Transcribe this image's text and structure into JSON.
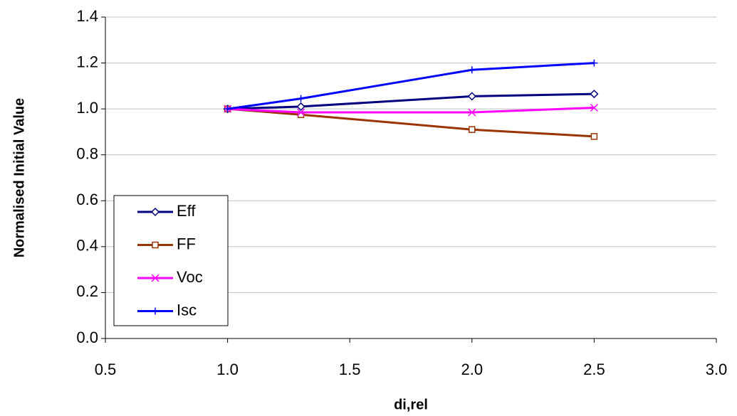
{
  "chart_data": {
    "type": "line",
    "x_label": "di,rel",
    "y_label": "Normalised Initial Value",
    "x": [
      1.0,
      1.3,
      2.0,
      2.5
    ],
    "series": [
      {
        "name": "Eff",
        "color": "#000080",
        "marker": "diamond",
        "values": [
          1.0,
          1.01,
          1.055,
          1.065
        ]
      },
      {
        "name": "FF",
        "color": "#993300",
        "marker": "square",
        "values": [
          1.0,
          0.975,
          0.91,
          0.88
        ]
      },
      {
        "name": "Voc",
        "color": "#ff00ff",
        "marker": "x",
        "values": [
          1.0,
          0.985,
          0.985,
          1.005
        ]
      },
      {
        "name": "Isc",
        "color": "#0000ff",
        "marker": "plus",
        "values": [
          1.0,
          1.045,
          1.17,
          1.2
        ]
      }
    ],
    "xlim": [
      0.5,
      3.0
    ],
    "xticks": [
      {
        "value": 0.5,
        "label": "0.5"
      },
      {
        "value": 1.0,
        "label": "1.0"
      },
      {
        "value": 1.5,
        "label": "1.5"
      },
      {
        "value": 2.0,
        "label": "2.0"
      },
      {
        "value": 2.5,
        "label": "2.5"
      },
      {
        "value": 3.0,
        "label": "3.0"
      }
    ],
    "ylim": [
      0,
      1.4
    ],
    "yticks": [
      {
        "value": 0,
        "label": "0.0"
      },
      {
        "value": 0.2,
        "label": "0.2"
      },
      {
        "value": 0.4,
        "label": "0.4"
      },
      {
        "value": 0.6,
        "label": "0.6"
      },
      {
        "value": 0.8,
        "label": "0.8"
      },
      {
        "value": 1.0,
        "label": "1.0"
      },
      {
        "value": 1.2,
        "label": "1.2"
      },
      {
        "value": 1.4,
        "label": "1.4"
      }
    ],
    "grid": true,
    "legend": "lower-left"
  }
}
